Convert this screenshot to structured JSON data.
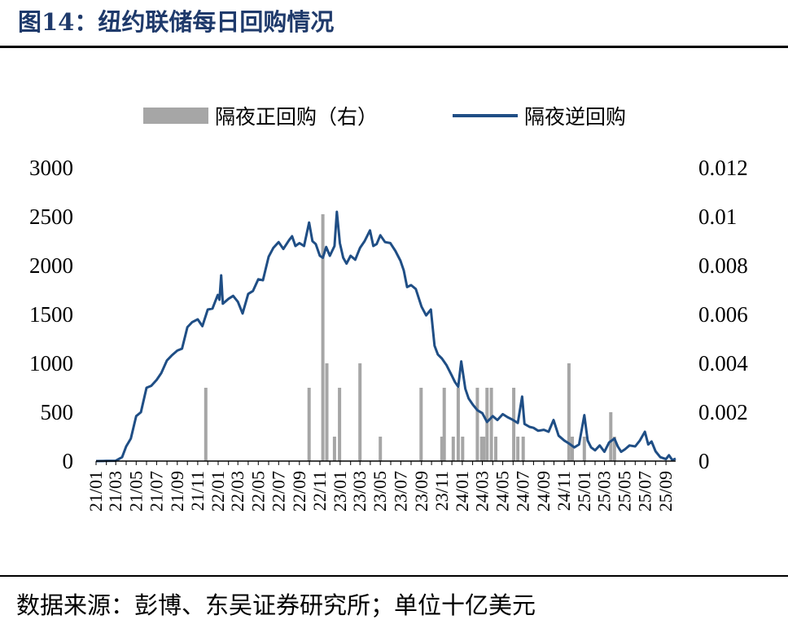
{
  "figure": {
    "title": "图14：纽约联储每日回购情况",
    "source": "数据来源：彭博、东吴证券研究所；单位十亿美元"
  },
  "colors": {
    "title": "#1f3a6b",
    "line": "#1f4e85",
    "bar": "#a6a6a6"
  },
  "chart_data": {
    "type": "line",
    "title": "",
    "legend_position": "top",
    "x_labels": [
      "21/01",
      "21/03",
      "21/05",
      "21/07",
      "21/09",
      "21/11",
      "22/01",
      "22/03",
      "22/05",
      "22/07",
      "22/09",
      "22/11",
      "23/01",
      "23/03",
      "23/05",
      "23/07",
      "23/09",
      "23/11",
      "24/01",
      "24/03",
      "24/05",
      "24/07",
      "24/09",
      "24/11",
      "25/01",
      "25/03",
      "25/05",
      "25/07",
      "25/09"
    ],
    "y_left": {
      "ticks": [
        0,
        500,
        1000,
        1500,
        2000,
        2500,
        3000
      ],
      "labels": [
        "0",
        "500",
        "1000",
        "1500",
        "2000",
        "2500",
        "3000"
      ],
      "range": [
        0,
        3000
      ]
    },
    "y_right": {
      "ticks": [
        0,
        0.002,
        0.004,
        0.006,
        0.008,
        0.01,
        0.012
      ],
      "labels": [
        "0",
        "0.002",
        "0.004",
        "0.006",
        "0.008",
        "0.01",
        "0.012"
      ],
      "range": [
        0,
        0.012
      ]
    },
    "x_start": "2021-01-01",
    "x_end": "2025-09-30",
    "series": [
      {
        "name": "隔夜逆回购",
        "kind": "line",
        "axis": "left",
        "points": [
          [
            "2021-01-01",
            0
          ],
          [
            "2021-02-01",
            2
          ],
          [
            "2021-03-01",
            3
          ],
          [
            "2021-03-20",
            40
          ],
          [
            "2021-04-01",
            150
          ],
          [
            "2021-04-15",
            230
          ],
          [
            "2021-05-01",
            460
          ],
          [
            "2021-05-15",
            500
          ],
          [
            "2021-06-01",
            750
          ],
          [
            "2021-06-15",
            770
          ],
          [
            "2021-07-01",
            830
          ],
          [
            "2021-07-15",
            900
          ],
          [
            "2021-08-01",
            1030
          ],
          [
            "2021-08-15",
            1080
          ],
          [
            "2021-09-01",
            1130
          ],
          [
            "2021-09-15",
            1150
          ],
          [
            "2021-10-01",
            1370
          ],
          [
            "2021-10-15",
            1420
          ],
          [
            "2021-11-01",
            1450
          ],
          [
            "2021-11-15",
            1380
          ],
          [
            "2021-12-01",
            1550
          ],
          [
            "2021-12-15",
            1560
          ],
          [
            "2021-12-31",
            1700
          ],
          [
            "2022-01-05",
            1650
          ],
          [
            "2022-01-10",
            1900
          ],
          [
            "2022-01-15",
            1610
          ],
          [
            "2022-02-01",
            1660
          ],
          [
            "2022-02-15",
            1690
          ],
          [
            "2022-03-01",
            1630
          ],
          [
            "2022-03-15",
            1510
          ],
          [
            "2022-04-01",
            1710
          ],
          [
            "2022-04-15",
            1740
          ],
          [
            "2022-05-01",
            1860
          ],
          [
            "2022-05-15",
            1850
          ],
          [
            "2022-06-01",
            2090
          ],
          [
            "2022-06-15",
            2180
          ],
          [
            "2022-07-01",
            2240
          ],
          [
            "2022-07-15",
            2170
          ],
          [
            "2022-08-01",
            2260
          ],
          [
            "2022-08-10",
            2300
          ],
          [
            "2022-08-20",
            2200
          ],
          [
            "2022-09-01",
            2230
          ],
          [
            "2022-09-15",
            2200
          ],
          [
            "2022-09-30",
            2440
          ],
          [
            "2022-10-10",
            2250
          ],
          [
            "2022-10-20",
            2220
          ],
          [
            "2022-11-01",
            2100
          ],
          [
            "2022-11-10",
            2080
          ],
          [
            "2022-11-20",
            2190
          ],
          [
            "2022-12-01",
            2100
          ],
          [
            "2022-12-15",
            2200
          ],
          [
            "2022-12-22",
            2550
          ],
          [
            "2022-12-31",
            2230
          ],
          [
            "2023-01-10",
            2080
          ],
          [
            "2023-01-20",
            2020
          ],
          [
            "2023-02-01",
            2100
          ],
          [
            "2023-02-15",
            2060
          ],
          [
            "2023-03-01",
            2180
          ],
          [
            "2023-03-15",
            2250
          ],
          [
            "2023-03-31",
            2360
          ],
          [
            "2023-04-10",
            2200
          ],
          [
            "2023-04-20",
            2220
          ],
          [
            "2023-05-01",
            2310
          ],
          [
            "2023-05-15",
            2240
          ],
          [
            "2023-05-31",
            2230
          ],
          [
            "2023-06-15",
            2150
          ],
          [
            "2023-06-30",
            2050
          ],
          [
            "2023-07-10",
            1950
          ],
          [
            "2023-07-20",
            1780
          ],
          [
            "2023-08-01",
            1800
          ],
          [
            "2023-08-15",
            1760
          ],
          [
            "2023-09-01",
            1580
          ],
          [
            "2023-09-15",
            1490
          ],
          [
            "2023-09-29",
            1550
          ],
          [
            "2023-10-10",
            1180
          ],
          [
            "2023-10-20",
            1090
          ],
          [
            "2023-11-01",
            1050
          ],
          [
            "2023-11-15",
            980
          ],
          [
            "2023-11-30",
            880
          ],
          [
            "2023-12-10",
            810
          ],
          [
            "2023-12-20",
            760
          ],
          [
            "2023-12-29",
            1020
          ],
          [
            "2024-01-10",
            740
          ],
          [
            "2024-01-20",
            640
          ],
          [
            "2024-02-01",
            580
          ],
          [
            "2024-02-15",
            520
          ],
          [
            "2024-03-01",
            490
          ],
          [
            "2024-03-15",
            400
          ],
          [
            "2024-04-01",
            460
          ],
          [
            "2024-04-15",
            420
          ],
          [
            "2024-05-01",
            480
          ],
          [
            "2024-05-15",
            450
          ],
          [
            "2024-06-01",
            420
          ],
          [
            "2024-06-15",
            390
          ],
          [
            "2024-06-28",
            660
          ],
          [
            "2024-07-05",
            380
          ],
          [
            "2024-07-20",
            350
          ],
          [
            "2024-08-01",
            340
          ],
          [
            "2024-08-15",
            310
          ],
          [
            "2024-09-01",
            320
          ],
          [
            "2024-09-15",
            300
          ],
          [
            "2024-09-30",
            420
          ],
          [
            "2024-10-15",
            260
          ],
          [
            "2024-11-01",
            210
          ],
          [
            "2024-11-15",
            180
          ],
          [
            "2024-12-01",
            140
          ],
          [
            "2024-12-15",
            170
          ],
          [
            "2024-12-31",
            470
          ],
          [
            "2025-01-10",
            210
          ],
          [
            "2025-01-20",
            140
          ],
          [
            "2025-02-01",
            110
          ],
          [
            "2025-02-15",
            160
          ],
          [
            "2025-03-01",
            95
          ],
          [
            "2025-03-15",
            190
          ],
          [
            "2025-03-31",
            230
          ],
          [
            "2025-04-10",
            150
          ],
          [
            "2025-04-20",
            95
          ],
          [
            "2025-05-01",
            120
          ],
          [
            "2025-05-15",
            160
          ],
          [
            "2025-06-01",
            150
          ],
          [
            "2025-06-15",
            210
          ],
          [
            "2025-06-30",
            300
          ],
          [
            "2025-07-10",
            170
          ],
          [
            "2025-07-20",
            200
          ],
          [
            "2025-08-01",
            100
          ],
          [
            "2025-08-15",
            40
          ],
          [
            "2025-09-01",
            20
          ],
          [
            "2025-09-10",
            60
          ],
          [
            "2025-09-20",
            10
          ],
          [
            "2025-09-30",
            25
          ]
        ]
      },
      {
        "name": "隔夜正回购（右）",
        "kind": "bar",
        "axis": "right",
        "points": [
          [
            "2021-11-25",
            0.003
          ],
          [
            "2022-09-30",
            0.003
          ],
          [
            "2022-11-10",
            0.0101
          ],
          [
            "2022-11-22",
            0.004
          ],
          [
            "2022-12-15",
            0.001
          ],
          [
            "2022-12-30",
            0.003
          ],
          [
            "2023-03-01",
            0.004
          ],
          [
            "2023-05-01",
            0.001
          ],
          [
            "2023-08-31",
            0.003
          ],
          [
            "2023-11-01",
            0.001
          ],
          [
            "2023-11-08",
            0.003
          ],
          [
            "2023-12-05",
            0.001
          ],
          [
            "2023-12-20",
            0.003
          ],
          [
            "2024-01-02",
            0.001
          ],
          [
            "2024-02-15",
            0.003
          ],
          [
            "2024-02-28",
            0.001
          ],
          [
            "2024-03-05",
            0.001
          ],
          [
            "2024-03-15",
            0.003
          ],
          [
            "2024-03-28",
            0.003
          ],
          [
            "2024-04-10",
            0.001
          ],
          [
            "2024-06-03",
            0.003
          ],
          [
            "2024-06-15",
            0.001
          ],
          [
            "2024-07-01",
            0.001
          ],
          [
            "2024-11-15",
            0.004
          ],
          [
            "2024-11-25",
            0.001
          ],
          [
            "2024-12-31",
            0.001
          ],
          [
            "2025-03-20",
            0.002
          ],
          [
            "2025-03-31",
            0.001
          ]
        ]
      }
    ]
  }
}
